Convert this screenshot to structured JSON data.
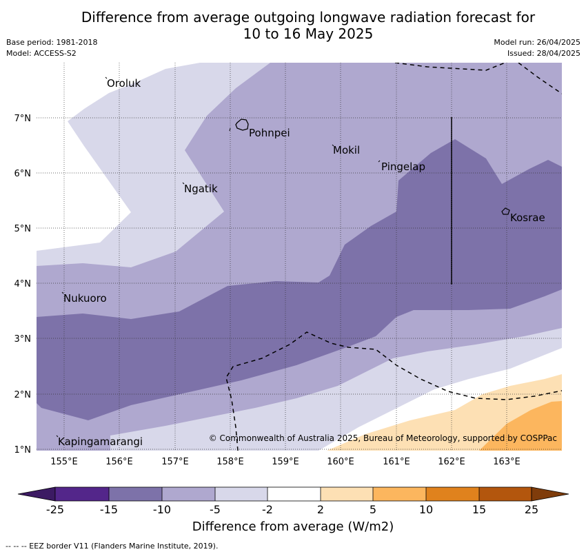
{
  "header": {
    "title_line1": "Difference from average outgoing longwave radiation forecast for",
    "title_line2": "10 to 16 May 2025",
    "base_period": "Base period: 1981-2018",
    "model": "Model: ACCESS-S2",
    "model_run": "Model run: 26/04/2025",
    "issued": "Issued: 28/04/2025"
  },
  "map": {
    "lon_ticks": [
      "155°E",
      "156°E",
      "157°E",
      "158°E",
      "159°E",
      "160°E",
      "161°E",
      "162°E",
      "163°E"
    ],
    "lat_ticks": [
      "7°N",
      "6°N",
      "5°N",
      "4°N",
      "3°N",
      "2°N",
      "1°N"
    ],
    "places": [
      {
        "name": "Oroluk"
      },
      {
        "name": "Pohnpei"
      },
      {
        "name": "Mokil"
      },
      {
        "name": "Pingelap"
      },
      {
        "name": "Ngatik"
      },
      {
        "name": "Kosrae"
      },
      {
        "name": "Nukuoro"
      },
      {
        "name": "Kapingamarangi"
      }
    ],
    "copyright": "© Commonwealth of Australia 2025, Bureau of Meteorology, supported by COSPPac"
  },
  "colorbar": {
    "ticks": [
      "-25",
      "-15",
      "-10",
      "-5",
      "-2",
      "2",
      "5",
      "10",
      "15",
      "25"
    ],
    "colors": [
      "#3c1a63",
      "#53268a",
      "#7d72a9",
      "#afa8cf",
      "#d8d8ea",
      "#ffffff",
      "#fde0b4",
      "#fcb65e",
      "#e0821d",
      "#b3560d",
      "#7f3c0b"
    ],
    "label": "Difference from average (W/m2)"
  },
  "footer": {
    "eez_note": "--  --  -- EEZ border V11 (Flanders Marine Institute, 2019)."
  }
}
